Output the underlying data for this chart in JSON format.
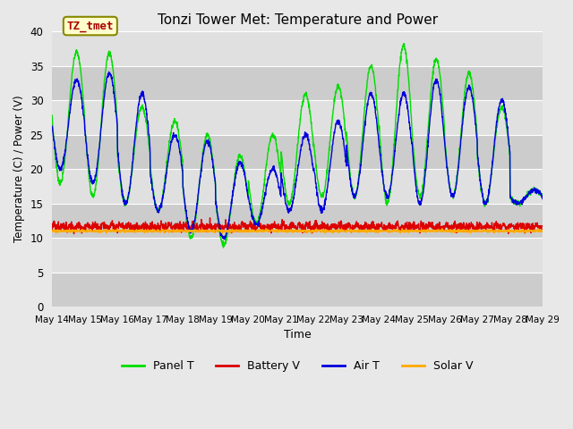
{
  "title": "Tonzi Tower Met: Temperature and Power",
  "xlabel": "Time",
  "ylabel": "Temperature (C) / Power (V)",
  "ylim": [
    0,
    40
  ],
  "yticks": [
    0,
    5,
    10,
    15,
    20,
    25,
    30,
    35,
    40
  ],
  "xtick_labels": [
    "May 14",
    "May 15",
    "May 16",
    "May 17",
    "May 18",
    "May 19",
    "May 20",
    "May 21",
    "May 22",
    "May 23",
    "May 24",
    "May 25",
    "May 26",
    "May 27",
    "May 28",
    "May 29"
  ],
  "outer_bg": "#e8e8e8",
  "plot_bg_light": "#e0e0e0",
  "plot_bg_dark": "#cccccc",
  "grid_color": "#ffffff",
  "annotation_text": "TZ_tmet",
  "annotation_color": "#aa0000",
  "annotation_bg": "#ffffcc",
  "annotation_edge": "#888800",
  "legend": [
    "Panel T",
    "Battery V",
    "Air T",
    "Solar V"
  ],
  "line_colors": [
    "#00dd00",
    "#dd0000",
    "#0000dd",
    "#ffaa00"
  ],
  "panel_peaks": [
    37,
    37,
    29,
    27,
    25,
    22,
    25,
    31,
    32,
    35,
    38,
    36,
    34,
    29,
    17
  ],
  "panel_troughs": [
    18,
    16,
    15,
    14,
    10,
    9,
    12,
    15,
    16,
    16,
    15,
    16,
    16,
    15,
    15
  ],
  "air_peaks": [
    33,
    34,
    31,
    25,
    24,
    21,
    20,
    25,
    27,
    31,
    31,
    33,
    32,
    30,
    17
  ],
  "air_troughs": [
    20,
    18,
    15,
    14,
    11,
    10,
    12,
    14,
    14,
    16,
    16,
    15,
    16,
    15,
    15
  ],
  "battery_base": 11.5,
  "solar_base": 11.0
}
